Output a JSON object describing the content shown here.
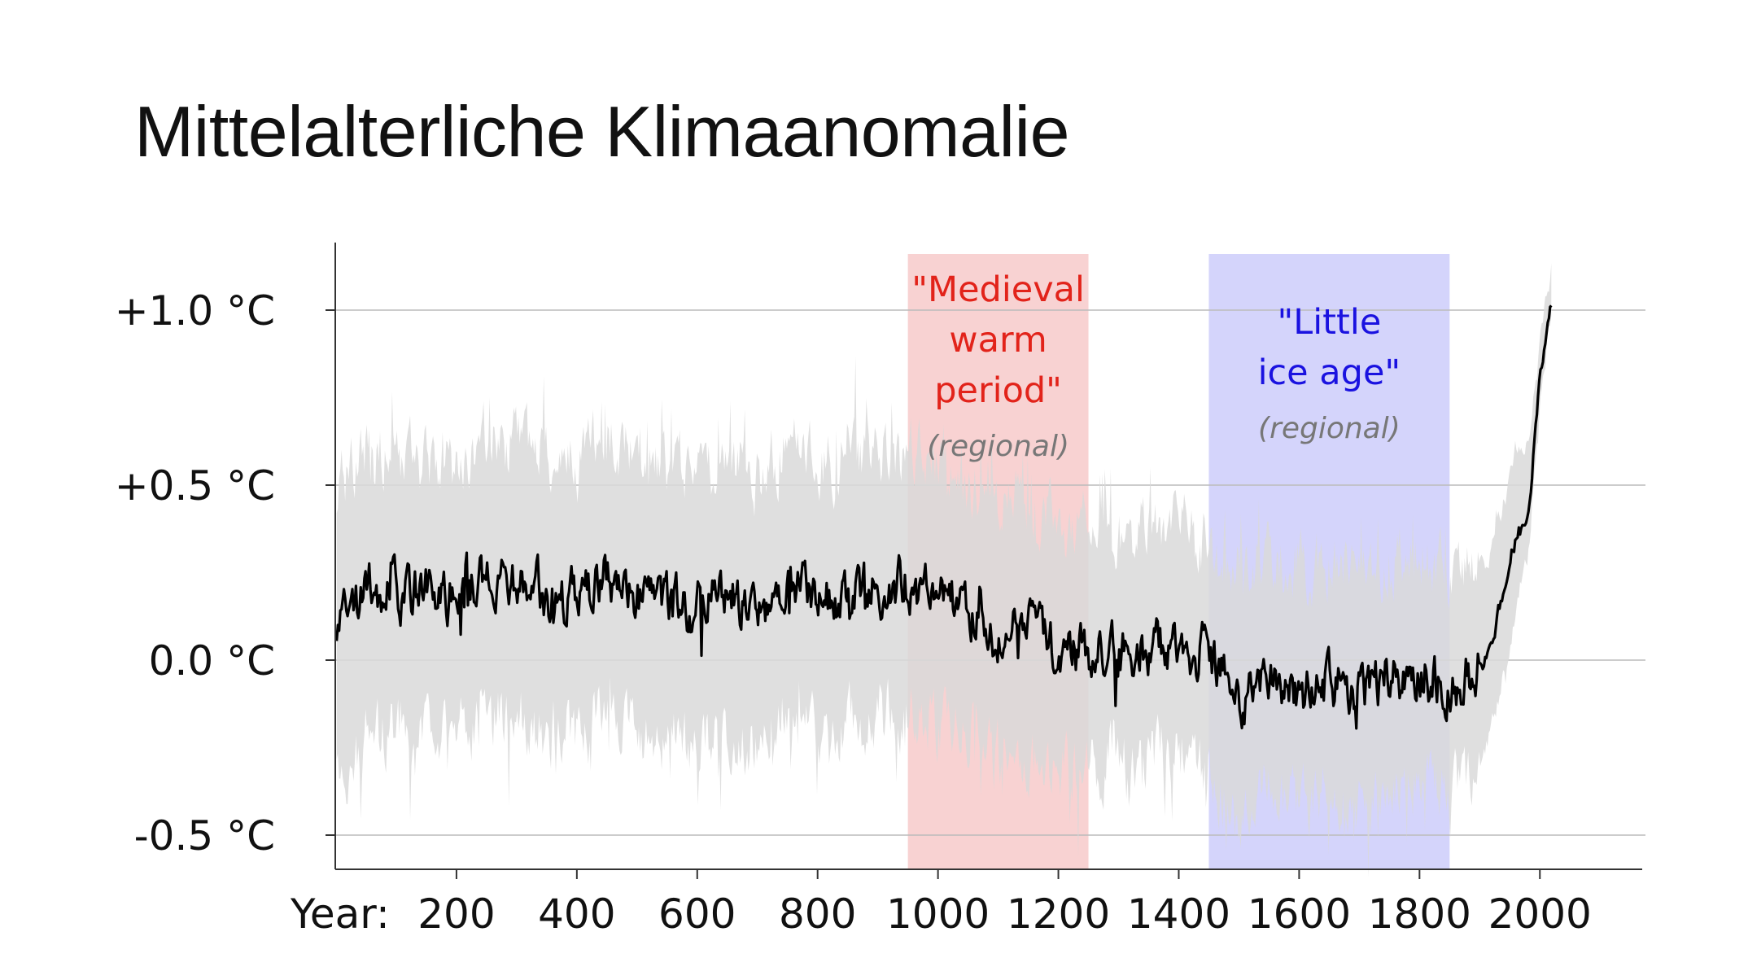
{
  "slide": {
    "title": "Mittelalterliche Klimaanomalie"
  },
  "chart_data": {
    "type": "area",
    "title": "Mittelalterliche Klimaanomalie",
    "xlabel": "Year:",
    "ylabel": "",
    "xlim": [
      0,
      2170
    ],
    "ylim": [
      -0.6,
      1.2
    ],
    "x_ticks": [
      200,
      400,
      600,
      800,
      1000,
      1200,
      1400,
      1600,
      1800,
      2000
    ],
    "y_ticks": [
      {
        "value": 1.0,
        "label": "+1.0 °C"
      },
      {
        "value": 0.5,
        "label": "+0.5 °C"
      },
      {
        "value": 0.0,
        "label": "0.0 °C"
      },
      {
        "value": -0.5,
        "label": "-0.5 °C"
      }
    ],
    "grid": true,
    "colors": {
      "line": "#000000",
      "band": "#d9d9d9",
      "medieval": "#f8d2d2",
      "little_ice_age": "#d4d4fb",
      "medieval_text": "#e2231a",
      "ice_text": "#1a12e0",
      "grid": "#bbbbbb"
    },
    "periods": [
      {
        "name": "medieval",
        "start": 950,
        "end": 1250,
        "label_lines": [
          "\"Medieval",
          "warm",
          "period\""
        ],
        "sublabel": "(regional)"
      },
      {
        "name": "little-ice-age",
        "start": 1450,
        "end": 1850,
        "label_lines": [
          "\"Little",
          "ice age\""
        ],
        "sublabel": "(regional)"
      }
    ],
    "series": [
      {
        "name": "temperature anomaly",
        "x": [
          1,
          50,
          100,
          150,
          200,
          250,
          300,
          350,
          400,
          450,
          500,
          550,
          600,
          650,
          700,
          750,
          800,
          850,
          900,
          950,
          1000,
          1050,
          1100,
          1150,
          1200,
          1250,
          1300,
          1350,
          1400,
          1450,
          1500,
          1550,
          1600,
          1650,
          1700,
          1750,
          1800,
          1850,
          1900,
          1920,
          1940,
          1960,
          1980,
          2000,
          2010,
          2020
        ],
        "values": [
          0.08,
          0.2,
          0.2,
          0.2,
          0.18,
          0.26,
          0.24,
          0.18,
          0.18,
          0.24,
          0.2,
          0.16,
          0.16,
          0.2,
          0.14,
          0.22,
          0.16,
          0.2,
          0.2,
          0.22,
          0.18,
          0.16,
          0.06,
          0.08,
          0.02,
          0.03,
          0.03,
          0.04,
          0.05,
          0.0,
          -0.1,
          -0.04,
          -0.1,
          -0.06,
          -0.1,
          -0.06,
          -0.02,
          -0.08,
          -0.02,
          0.05,
          0.2,
          0.35,
          0.4,
          0.8,
          0.95,
          1.05
        ],
        "band_lower": [
          -0.35,
          -0.22,
          -0.2,
          -0.2,
          -0.2,
          -0.15,
          -0.16,
          -0.2,
          -0.2,
          -0.16,
          -0.2,
          -0.25,
          -0.23,
          -0.2,
          -0.26,
          -0.15,
          -0.2,
          -0.17,
          -0.17,
          -0.15,
          -0.18,
          -0.2,
          -0.28,
          -0.28,
          -0.33,
          -0.3,
          -0.26,
          -0.27,
          -0.26,
          -0.32,
          -0.42,
          -0.36,
          -0.42,
          -0.38,
          -0.42,
          -0.38,
          -0.33,
          -0.38,
          -0.3,
          -0.2,
          -0.05,
          0.15,
          0.3,
          0.7,
          0.9,
          1.0
        ],
        "band_upper": [
          0.5,
          0.58,
          0.56,
          0.58,
          0.54,
          0.64,
          0.62,
          0.56,
          0.56,
          0.62,
          0.58,
          0.54,
          0.54,
          0.6,
          0.52,
          0.62,
          0.54,
          0.58,
          0.58,
          0.6,
          0.56,
          0.52,
          0.42,
          0.44,
          0.38,
          0.38,
          0.36,
          0.38,
          0.38,
          0.32,
          0.24,
          0.3,
          0.24,
          0.28,
          0.25,
          0.28,
          0.3,
          0.25,
          0.27,
          0.3,
          0.45,
          0.6,
          0.6,
          0.9,
          1.02,
          1.12
        ]
      }
    ]
  }
}
